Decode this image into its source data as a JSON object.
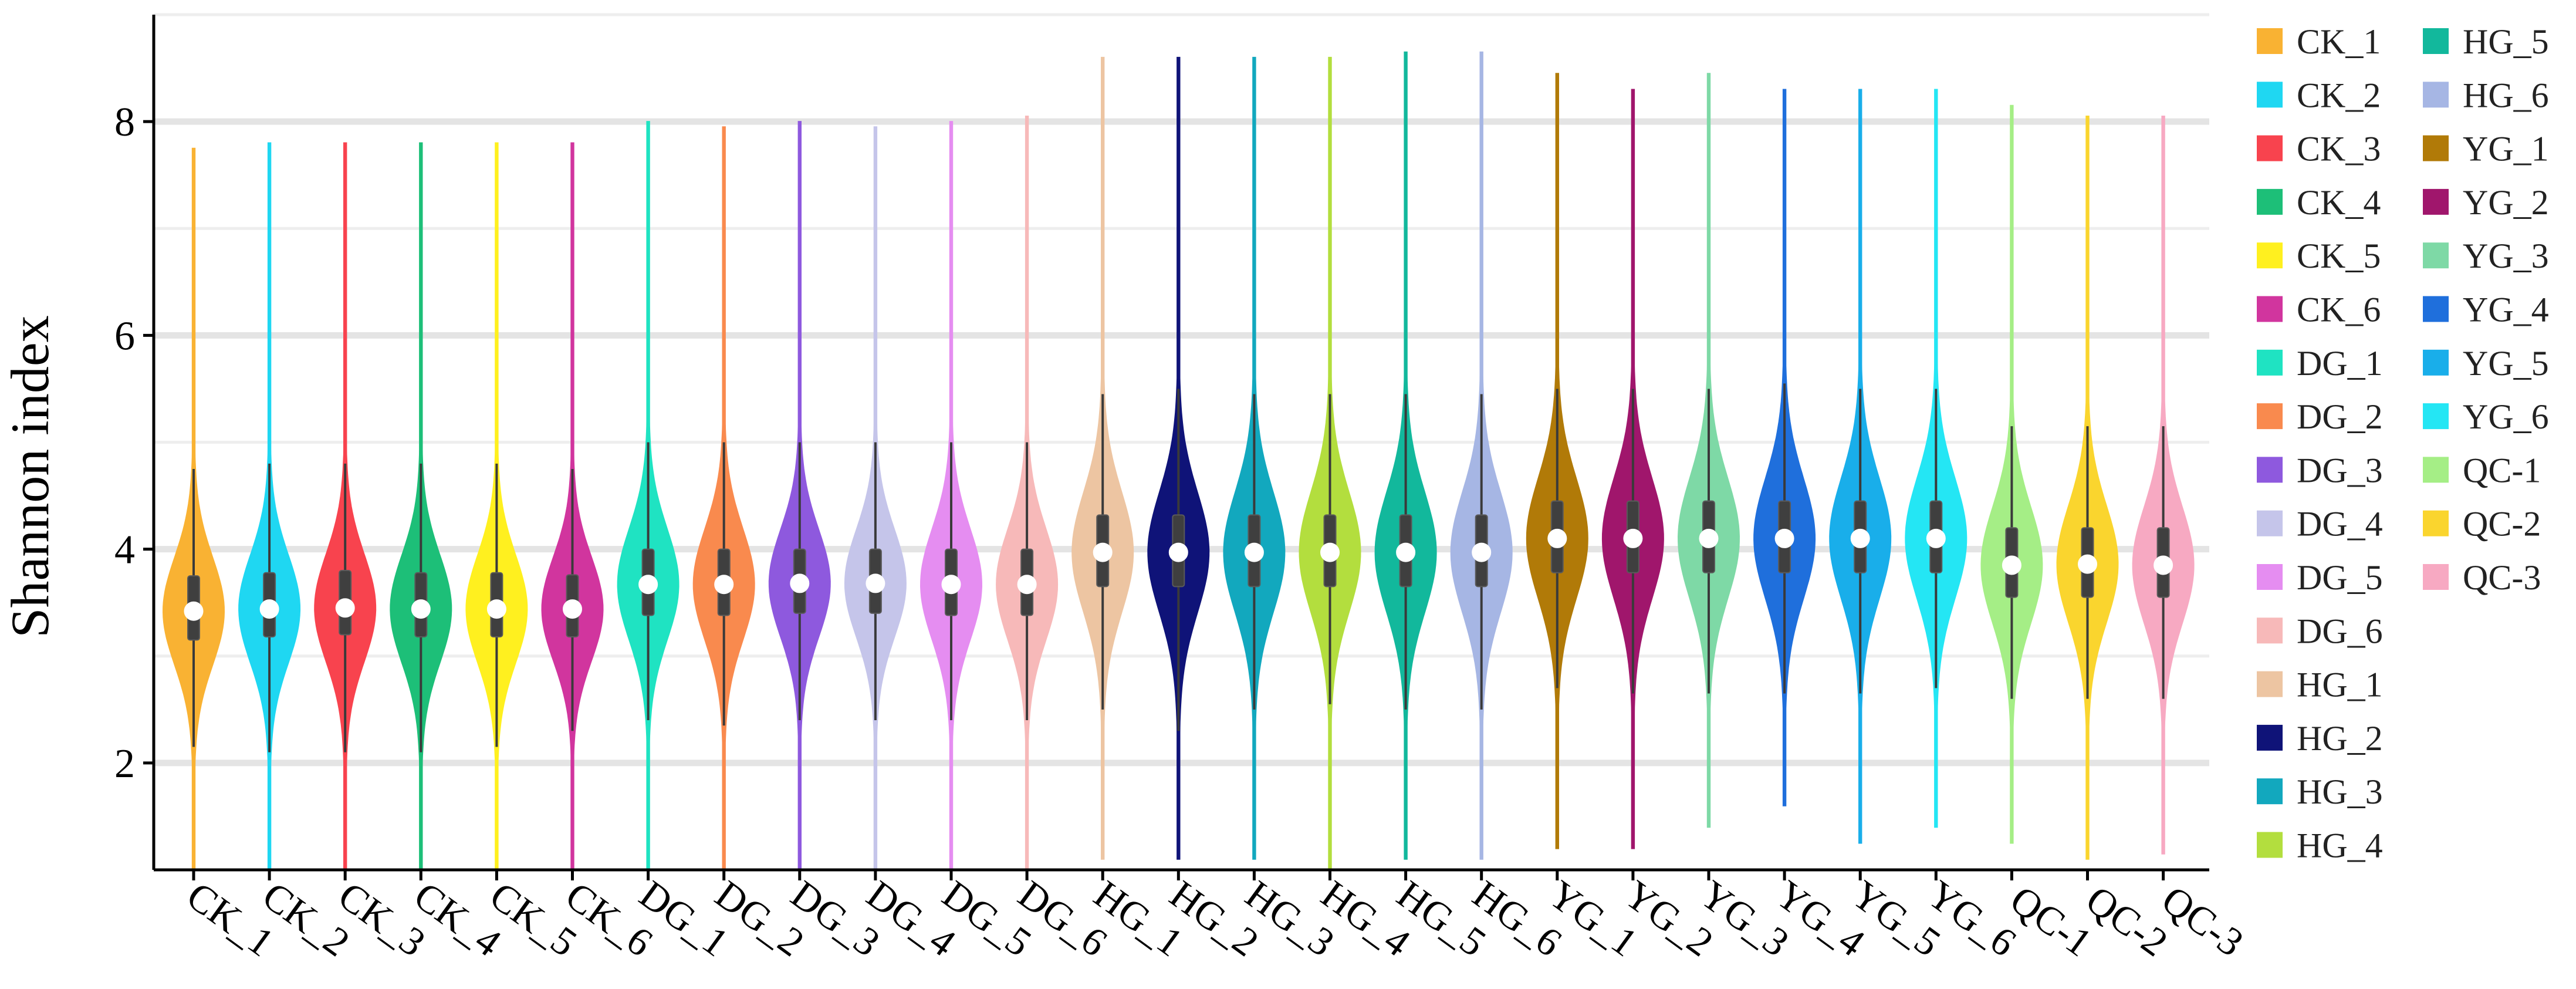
{
  "chart_data": {
    "type": "violin",
    "title": "",
    "xlabel": "",
    "ylabel": "Shannon index",
    "ylim": [
      1.0,
      9.0
    ],
    "yticks": [
      2,
      4,
      6,
      8
    ],
    "grid": "horizontal",
    "legend_position": "right",
    "groups": [
      {
        "name": "CK_1",
        "color": "#F9B233",
        "min": 1.0,
        "q1": 3.15,
        "median": 3.42,
        "q3": 3.75,
        "whisker_low": 2.15,
        "whisker_high": 4.75,
        "max": 7.75
      },
      {
        "name": "CK_2",
        "color": "#1FD7F2",
        "min": 1.0,
        "q1": 3.18,
        "median": 3.44,
        "q3": 3.78,
        "whisker_low": 2.1,
        "whisker_high": 4.8,
        "max": 7.8
      },
      {
        "name": "CK_3",
        "color": "#F8434E",
        "min": 1.0,
        "q1": 3.2,
        "median": 3.45,
        "q3": 3.8,
        "whisker_low": 2.1,
        "whisker_high": 4.8,
        "max": 7.8
      },
      {
        "name": "CK_4",
        "color": "#1DBF78",
        "min": 1.0,
        "q1": 3.18,
        "median": 3.44,
        "q3": 3.78,
        "whisker_low": 2.1,
        "whisker_high": 4.8,
        "max": 7.8
      },
      {
        "name": "CK_5",
        "color": "#FFF01F",
        "min": 1.0,
        "q1": 3.18,
        "median": 3.44,
        "q3": 3.78,
        "whisker_low": 2.15,
        "whisker_high": 4.8,
        "max": 7.8
      },
      {
        "name": "CK_6",
        "color": "#D1359E",
        "min": 1.0,
        "q1": 3.18,
        "median": 3.44,
        "q3": 3.76,
        "whisker_low": 2.3,
        "whisker_high": 4.75,
        "max": 7.8
      },
      {
        "name": "DG_1",
        "color": "#1FE3C2",
        "min": 1.0,
        "q1": 3.38,
        "median": 3.67,
        "q3": 4.0,
        "whisker_low": 2.4,
        "whisker_high": 5.0,
        "max": 8.0
      },
      {
        "name": "DG_2",
        "color": "#F98A4E",
        "min": 1.0,
        "q1": 3.38,
        "median": 3.67,
        "q3": 4.0,
        "whisker_low": 2.35,
        "whisker_high": 5.0,
        "max": 7.95
      },
      {
        "name": "DG_3",
        "color": "#8E59DE",
        "min": 1.0,
        "q1": 3.4,
        "median": 3.68,
        "q3": 4.0,
        "whisker_low": 2.4,
        "whisker_high": 5.0,
        "max": 8.0
      },
      {
        "name": "DG_4",
        "color": "#C5C5EA",
        "min": 1.0,
        "q1": 3.4,
        "median": 3.68,
        "q3": 4.0,
        "whisker_low": 2.4,
        "whisker_high": 5.0,
        "max": 7.95
      },
      {
        "name": "DG_5",
        "color": "#E58DF1",
        "min": 1.0,
        "q1": 3.38,
        "median": 3.67,
        "q3": 4.0,
        "whisker_low": 2.4,
        "whisker_high": 5.0,
        "max": 8.0
      },
      {
        "name": "DG_6",
        "color": "#F7B9B9",
        "min": 1.0,
        "q1": 3.38,
        "median": 3.67,
        "q3": 4.0,
        "whisker_low": 2.4,
        "whisker_high": 5.0,
        "max": 8.05
      },
      {
        "name": "HG_1",
        "color": "#EDC5A2",
        "min": 1.1,
        "q1": 3.65,
        "median": 3.97,
        "q3": 4.32,
        "whisker_low": 2.5,
        "whisker_high": 5.45,
        "max": 8.6
      },
      {
        "name": "HG_2",
        "color": "#0F1378",
        "min": 1.1,
        "q1": 3.65,
        "median": 3.97,
        "q3": 4.32,
        "whisker_low": 2.3,
        "whisker_high": 5.5,
        "max": 8.6
      },
      {
        "name": "HG_3",
        "color": "#12A8BE",
        "min": 1.1,
        "q1": 3.65,
        "median": 3.97,
        "q3": 4.32,
        "whisker_low": 2.5,
        "whisker_high": 5.45,
        "max": 8.6
      },
      {
        "name": "HG_4",
        "color": "#B3DE3E",
        "min": 1.0,
        "q1": 3.65,
        "median": 3.97,
        "q3": 4.32,
        "whisker_low": 2.55,
        "whisker_high": 5.45,
        "max": 8.6
      },
      {
        "name": "HG_5",
        "color": "#12B89C",
        "min": 1.1,
        "q1": 3.65,
        "median": 3.97,
        "q3": 4.32,
        "whisker_low": 2.5,
        "whisker_high": 5.45,
        "max": 8.65
      },
      {
        "name": "HG_6",
        "color": "#A6B6E4",
        "min": 1.1,
        "q1": 3.65,
        "median": 3.97,
        "q3": 4.32,
        "whisker_low": 2.5,
        "whisker_high": 5.45,
        "max": 8.65
      },
      {
        "name": "YG_1",
        "color": "#B17A08",
        "min": 1.2,
        "q1": 3.78,
        "median": 4.1,
        "q3": 4.45,
        "whisker_low": 2.7,
        "whisker_high": 5.5,
        "max": 8.45
      },
      {
        "name": "YG_2",
        "color": "#A0166C",
        "min": 1.2,
        "q1": 3.78,
        "median": 4.1,
        "q3": 4.45,
        "whisker_low": 2.65,
        "whisker_high": 5.5,
        "max": 8.3
      },
      {
        "name": "YG_3",
        "color": "#7ED9A6",
        "min": 1.4,
        "q1": 3.78,
        "median": 4.1,
        "q3": 4.45,
        "whisker_low": 2.65,
        "whisker_high": 5.5,
        "max": 8.45
      },
      {
        "name": "YG_4",
        "color": "#1F6FDC",
        "min": 1.6,
        "q1": 3.78,
        "median": 4.1,
        "q3": 4.45,
        "whisker_low": 2.65,
        "whisker_high": 5.55,
        "max": 8.3
      },
      {
        "name": "YG_5",
        "color": "#19AEEA",
        "min": 1.25,
        "q1": 3.78,
        "median": 4.1,
        "q3": 4.45,
        "whisker_low": 2.65,
        "whisker_high": 5.5,
        "max": 8.3
      },
      {
        "name": "YG_6",
        "color": "#24E6F4",
        "min": 1.4,
        "q1": 3.78,
        "median": 4.1,
        "q3": 4.45,
        "whisker_low": 2.7,
        "whisker_high": 5.5,
        "max": 8.3
      },
      {
        "name": "QC-1",
        "color": "#A5EE86",
        "min": 1.25,
        "q1": 3.55,
        "median": 3.85,
        "q3": 4.2,
        "whisker_low": 2.6,
        "whisker_high": 5.15,
        "max": 8.15
      },
      {
        "name": "QC-2",
        "color": "#FAD52E",
        "min": 1.1,
        "q1": 3.55,
        "median": 3.86,
        "q3": 4.2,
        "whisker_low": 2.6,
        "whisker_high": 5.15,
        "max": 8.05
      },
      {
        "name": "QC-3",
        "color": "#F7A9C2",
        "min": 1.15,
        "q1": 3.55,
        "median": 3.85,
        "q3": 4.2,
        "whisker_low": 2.6,
        "whisker_high": 5.15,
        "max": 8.05
      }
    ]
  }
}
